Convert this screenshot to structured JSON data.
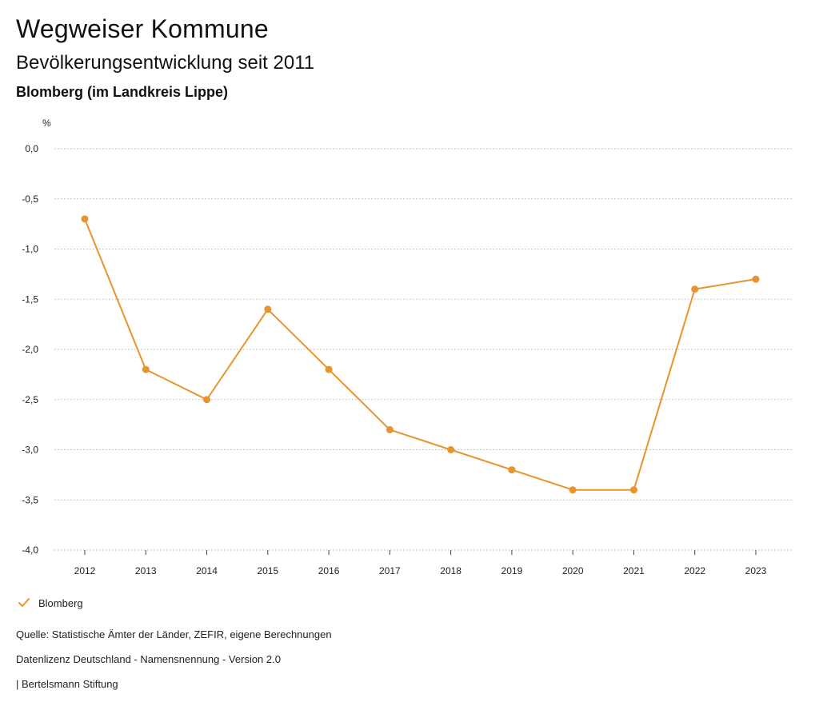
{
  "header": {
    "title": "Wegweiser Kommune",
    "subtitle": "Bevölkerungsentwicklung seit 2011",
    "place": "Blomberg (im Landkreis Lippe)"
  },
  "chart_data": {
    "type": "line",
    "title": "Bevölkerungsentwicklung seit 2011",
    "ylabel": "%",
    "xlabel": "",
    "ylim": [
      -4.0,
      0.0
    ],
    "y_ticks": [
      0.0,
      -0.5,
      -1.0,
      -1.5,
      -2.0,
      -2.5,
      -3.0,
      -3.5,
      -4.0
    ],
    "y_tick_labels": [
      "0,0",
      "-0,5",
      "-1,0",
      "-1,5",
      "-2,0",
      "-2,5",
      "-3,0",
      "-3,5",
      "-4,0"
    ],
    "categories": [
      "2012",
      "2013",
      "2014",
      "2015",
      "2016",
      "2017",
      "2018",
      "2019",
      "2020",
      "2021",
      "2022",
      "2023"
    ],
    "series": [
      {
        "name": "Blomberg",
        "color": "#E8942E",
        "values": [
          -0.7,
          -2.2,
          -2.5,
          -1.6,
          -2.2,
          -2.8,
          -3.0,
          -3.2,
          -3.4,
          -3.4,
          -1.4,
          -1.3
        ]
      }
    ],
    "grid": true,
    "legend": "bottom-left"
  },
  "legend": {
    "label": "Blomberg"
  },
  "footer": {
    "source": "Quelle: Statistische Ämter der Länder, ZEFIR, eigene Berechnungen",
    "license": "Datenlizenz Deutschland - Namensnennung - Version 2.0",
    "publisher": "| Bertelsmann Stiftung"
  }
}
